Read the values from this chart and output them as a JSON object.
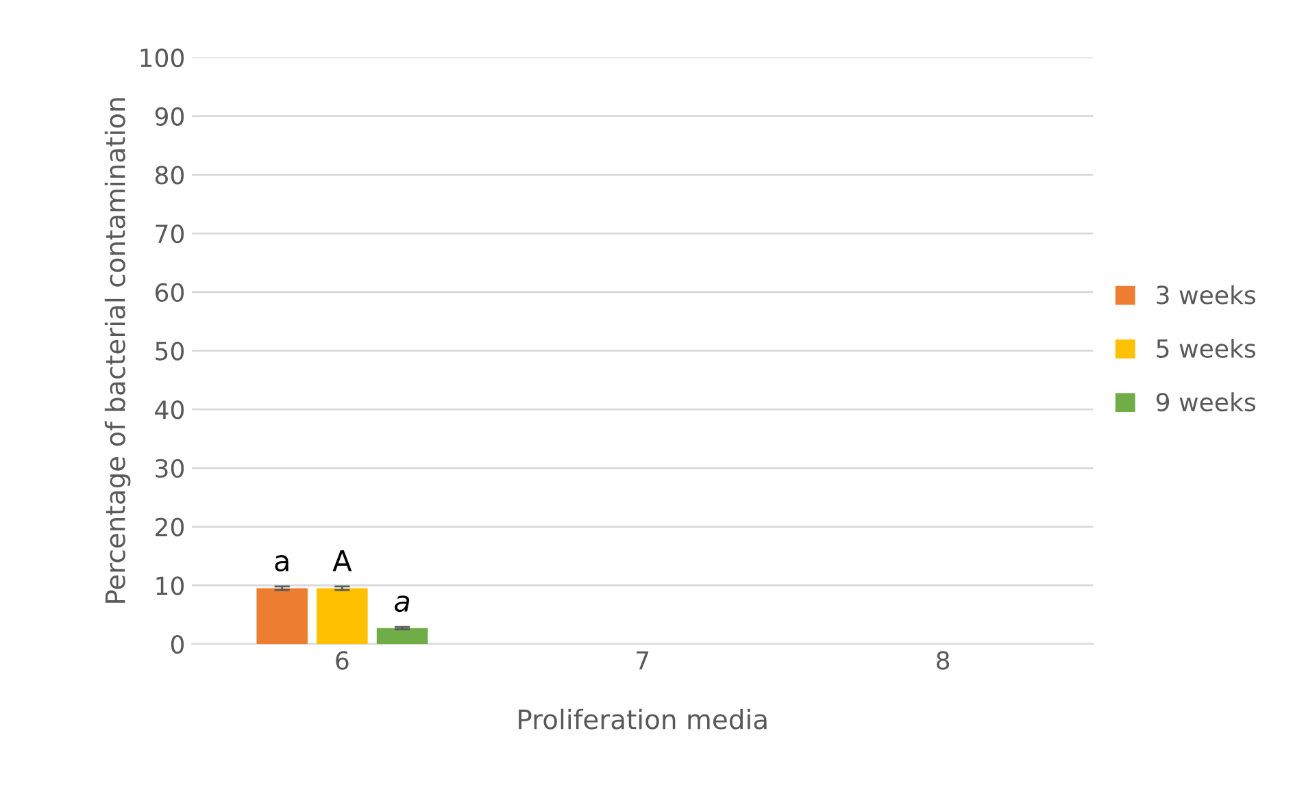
{
  "chart_data": {
    "type": "bar",
    "xlabel": "Proliferation media",
    "ylabel": "Percentage of bacterial contamination",
    "categories": [
      "6",
      "7",
      "8"
    ],
    "series": [
      {
        "name": "3 weeks",
        "color": "#ed7d31",
        "values": [
          9.5,
          0,
          0
        ],
        "errors": [
          0.3,
          null,
          null
        ]
      },
      {
        "name": "5 weeks",
        "color": "#ffc000",
        "values": [
          9.5,
          0,
          0
        ],
        "errors": [
          0.3,
          null,
          null
        ]
      },
      {
        "name": "9 weeks",
        "color": "#70ad47",
        "values": [
          2.7,
          0,
          0
        ],
        "errors": [
          0.2,
          null,
          null
        ]
      }
    ],
    "annotations": [
      "a",
      "A",
      "a"
    ],
    "ylim": [
      0,
      100
    ],
    "yticks": [
      0,
      10,
      20,
      30,
      40,
      50,
      60,
      70,
      80,
      90,
      100
    ],
    "grid": "y",
    "legend": "right"
  }
}
